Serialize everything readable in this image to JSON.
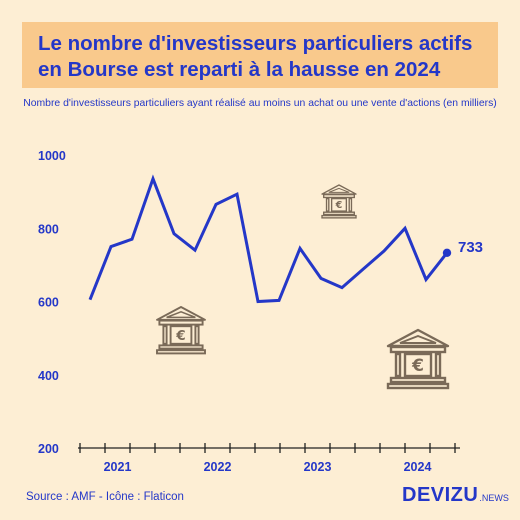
{
  "title": {
    "line1": "Le nombre d'investisseurs particuliers actifs",
    "line2": "en Bourse est reparti à la hausse en 2024"
  },
  "subtitle": "Nombre d'investisseurs particuliers ayant réalisé au moins un achat ou une vente d'actions (en milliers)",
  "source": "Source : AMF - Icône : Flaticon",
  "brand": {
    "main": "DEVIZU",
    "sub": ".NEWS"
  },
  "colors": {
    "accent": "#2437c8",
    "title_bg": "#f9c98c",
    "background": "#fdeed4",
    "icon": "#7a6a58"
  },
  "icons": [
    "bank-euro-icon",
    "bank-euro-icon",
    "bank-euro-icon"
  ],
  "chart_data": {
    "type": "line",
    "title": "",
    "xlabel": "",
    "ylabel": "",
    "ylim": [
      200,
      1000
    ],
    "yticks": [
      200,
      400,
      600,
      800,
      1000
    ],
    "xtick_labels": [
      "2021",
      "2022",
      "2023",
      "2024"
    ],
    "x_tick_count": 16,
    "grid": false,
    "series": [
      {
        "values": [
          605,
          750,
          770,
          935,
          785,
          740,
          865,
          893,
          600,
          603,
          745,
          663,
          638,
          688,
          738,
          800,
          660,
          733
        ]
      }
    ],
    "annotations": [
      {
        "point_index": 17,
        "text": "733"
      }
    ]
  }
}
